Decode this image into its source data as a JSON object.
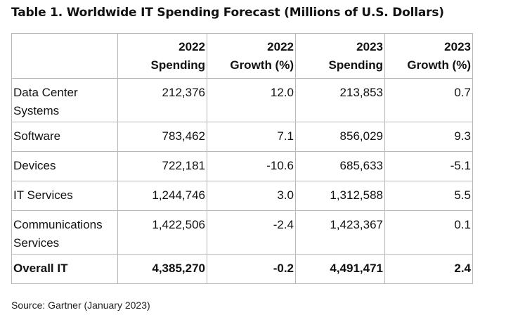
{
  "title": "Table 1. Worldwide IT Spending Forecast (Millions of U.S. Dollars)",
  "columns": [
    {
      "line1": "2022",
      "line2": "Spending"
    },
    {
      "line1": "2022",
      "line2": "Growth (%)"
    },
    {
      "line1": "2023",
      "line2": "Spending"
    },
    {
      "line1": "2023",
      "line2": "Growth (%)"
    }
  ],
  "rows": [
    {
      "category_line1": "Data Center",
      "category_line2": "Systems",
      "spending_2022": "212,376",
      "growth_2022": "12.0",
      "spending_2023": "213,853",
      "growth_2023": "0.7"
    },
    {
      "category_line1": "Software",
      "category_line2": "",
      "spending_2022": "783,462",
      "growth_2022": "7.1",
      "spending_2023": "856,029",
      "growth_2023": "9.3"
    },
    {
      "category_line1": "Devices",
      "category_line2": "",
      "spending_2022": "722,181",
      "growth_2022": "-10.6",
      "spending_2023": "685,633",
      "growth_2023": "-5.1"
    },
    {
      "category_line1": "IT Services",
      "category_line2": "",
      "spending_2022": "1,244,746",
      "growth_2022": "3.0",
      "spending_2023": "1,312,588",
      "growth_2023": "5.5"
    },
    {
      "category_line1": "Communications",
      "category_line2": "Services",
      "spending_2022": "1,422,506",
      "growth_2022": "-2.4",
      "spending_2023": "1,423,367",
      "growth_2023": "0.1"
    }
  ],
  "total": {
    "category": "Overall IT",
    "spending_2022": "4,385,270",
    "growth_2022": "-0.2",
    "spending_2023": "4,491,471",
    "growth_2023": "2.4"
  },
  "source": "Source: Gartner (January 2023)"
}
